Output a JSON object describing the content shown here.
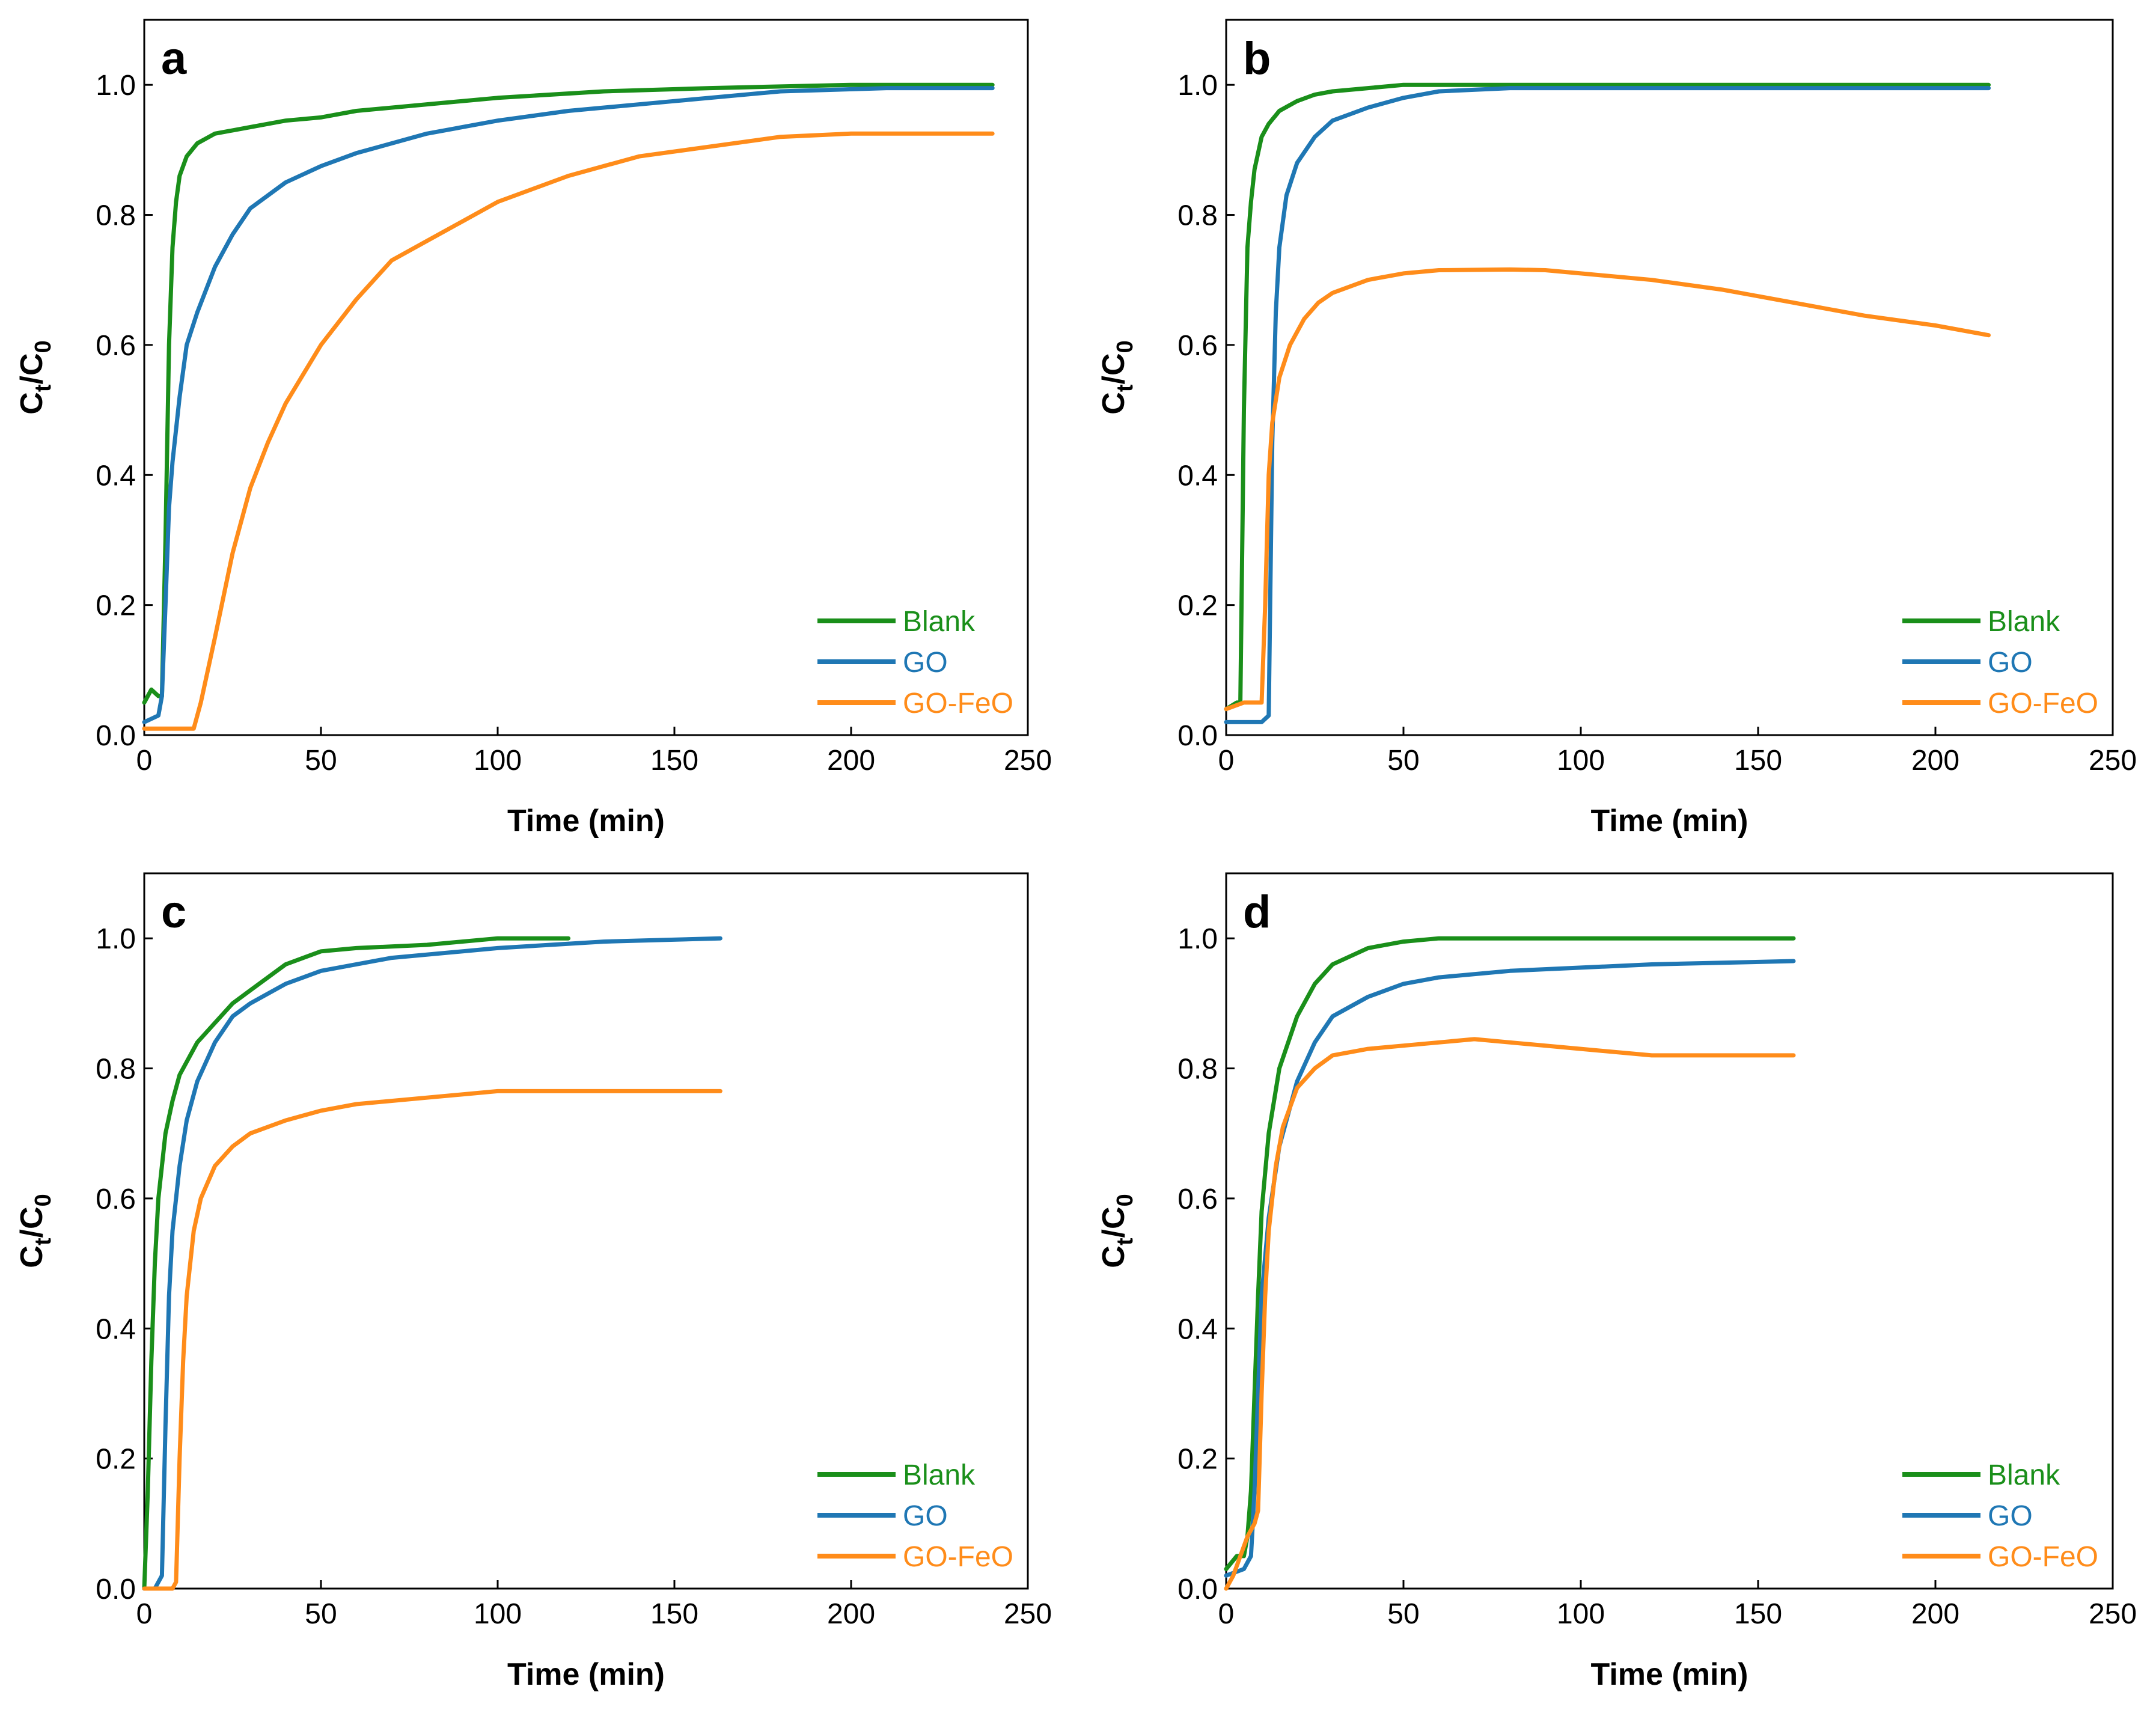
{
  "colors": {
    "blank": "#1a8f1a",
    "go": "#1f77b4",
    "gofeo": "#ff8c1a"
  },
  "chart_data": [
    {
      "type": "line",
      "panel_label": "a",
      "xlabel": "Time (min)",
      "ylabel_main": "C",
      "ylabel_sub_t": "t",
      "ylabel_slash": "/C",
      "ylabel_sub_0": "0",
      "xlim": [
        0,
        250
      ],
      "ylim": [
        0,
        1.1
      ],
      "xticks": [
        "0",
        "50",
        "100",
        "150",
        "200",
        "250"
      ],
      "yticks": [
        "0.0",
        "0.2",
        "0.4",
        "0.6",
        "0.8",
        "1.0"
      ],
      "legend": [
        "Blank",
        "GO",
        "GO-FeO"
      ],
      "series": [
        {
          "name": "Blank",
          "x": [
            0,
            2,
            4,
            5,
            6,
            7,
            8,
            9,
            10,
            12,
            15,
            20,
            25,
            30,
            40,
            50,
            60,
            80,
            100,
            130,
            160,
            200,
            240
          ],
          "y": [
            0.05,
            0.07,
            0.06,
            0.06,
            0.3,
            0.6,
            0.75,
            0.82,
            0.86,
            0.89,
            0.91,
            0.925,
            0.93,
            0.935,
            0.945,
            0.95,
            0.96,
            0.97,
            0.98,
            0.99,
            0.995,
            1.0,
            1.0
          ]
        },
        {
          "name": "GO",
          "x": [
            0,
            4,
            5,
            6,
            7,
            8,
            10,
            12,
            15,
            20,
            25,
            30,
            40,
            50,
            60,
            80,
            100,
            120,
            150,
            180,
            210,
            240
          ],
          "y": [
            0.02,
            0.03,
            0.06,
            0.2,
            0.35,
            0.42,
            0.52,
            0.6,
            0.65,
            0.72,
            0.77,
            0.81,
            0.85,
            0.875,
            0.895,
            0.925,
            0.945,
            0.96,
            0.975,
            0.99,
            0.995,
            0.995
          ]
        },
        {
          "name": "GO-FeO",
          "x": [
            0,
            5,
            10,
            14,
            16,
            20,
            25,
            30,
            35,
            40,
            50,
            60,
            70,
            80,
            90,
            100,
            120,
            140,
            160,
            180,
            200,
            240
          ],
          "y": [
            0.01,
            0.01,
            0.01,
            0.01,
            0.05,
            0.15,
            0.28,
            0.38,
            0.45,
            0.51,
            0.6,
            0.67,
            0.73,
            0.76,
            0.79,
            0.82,
            0.86,
            0.89,
            0.905,
            0.92,
            0.925,
            0.925
          ]
        }
      ]
    },
    {
      "type": "line",
      "panel_label": "b",
      "xlabel": "Time (min)",
      "ylabel_main": "C",
      "ylabel_sub_t": "t",
      "ylabel_slash": "/C",
      "ylabel_sub_0": "0",
      "xlim": [
        0,
        250
      ],
      "ylim": [
        0,
        1.1
      ],
      "xticks": [
        "0",
        "50",
        "100",
        "150",
        "200",
        "250"
      ],
      "yticks": [
        "0.0",
        "0.2",
        "0.4",
        "0.6",
        "0.8",
        "1.0"
      ],
      "legend": [
        "Blank",
        "GO",
        "GO-FeO"
      ],
      "series": [
        {
          "name": "Blank",
          "x": [
            0,
            3,
            4,
            5,
            6,
            7,
            8,
            10,
            12,
            15,
            20,
            25,
            30,
            40,
            50,
            100,
            150,
            215
          ],
          "y": [
            0.04,
            0.05,
            0.05,
            0.5,
            0.75,
            0.82,
            0.87,
            0.92,
            0.94,
            0.96,
            0.975,
            0.985,
            0.99,
            0.995,
            1.0,
            1.0,
            1.0,
            1.0
          ]
        },
        {
          "name": "GO",
          "x": [
            0,
            5,
            10,
            12,
            13,
            14,
            15,
            17,
            20,
            25,
            30,
            40,
            50,
            60,
            80,
            100,
            150,
            215
          ],
          "y": [
            0.02,
            0.02,
            0.02,
            0.03,
            0.45,
            0.65,
            0.75,
            0.83,
            0.88,
            0.92,
            0.945,
            0.965,
            0.98,
            0.99,
            0.995,
            0.995,
            0.995,
            0.995
          ]
        },
        {
          "name": "GO-FeO",
          "x": [
            0,
            5,
            10,
            11,
            12,
            13,
            15,
            18,
            22,
            26,
            30,
            40,
            50,
            60,
            80,
            90,
            100,
            120,
            140,
            160,
            180,
            200,
            215
          ],
          "y": [
            0.04,
            0.05,
            0.05,
            0.2,
            0.4,
            0.48,
            0.55,
            0.6,
            0.64,
            0.665,
            0.68,
            0.7,
            0.71,
            0.715,
            0.716,
            0.715,
            0.71,
            0.7,
            0.685,
            0.665,
            0.645,
            0.63,
            0.615
          ]
        }
      ]
    },
    {
      "type": "line",
      "panel_label": "c",
      "xlabel": "Time (min)",
      "ylabel_main": "C",
      "ylabel_sub_t": "t",
      "ylabel_slash": "/C",
      "ylabel_sub_0": "0",
      "xlim": [
        0,
        250
      ],
      "ylim": [
        0,
        1.1
      ],
      "xticks": [
        "0",
        "50",
        "100",
        "150",
        "200",
        "250"
      ],
      "yticks": [
        "0.0",
        "0.2",
        "0.4",
        "0.6",
        "0.8",
        "1.0"
      ],
      "legend": [
        "Blank",
        "GO",
        "GO-FeO"
      ],
      "series": [
        {
          "name": "Blank",
          "x": [
            0,
            1,
            2,
            3,
            4,
            6,
            8,
            10,
            15,
            20,
            25,
            30,
            40,
            50,
            60,
            80,
            100,
            120
          ],
          "y": [
            0.0,
            0.15,
            0.35,
            0.5,
            0.6,
            0.7,
            0.75,
            0.79,
            0.84,
            0.87,
            0.9,
            0.92,
            0.96,
            0.98,
            0.985,
            0.99,
            1.0,
            1.0
          ]
        },
        {
          "name": "GO",
          "x": [
            0,
            3,
            5,
            6,
            7,
            8,
            10,
            12,
            15,
            20,
            25,
            30,
            40,
            50,
            70,
            100,
            130,
            163
          ],
          "y": [
            0.0,
            0.0,
            0.02,
            0.25,
            0.45,
            0.55,
            0.65,
            0.72,
            0.78,
            0.84,
            0.88,
            0.9,
            0.93,
            0.95,
            0.97,
            0.985,
            0.995,
            1.0
          ]
        },
        {
          "name": "GO-FeO",
          "x": [
            0,
            8,
            9,
            10,
            11,
            12,
            14,
            16,
            20,
            25,
            30,
            40,
            50,
            60,
            80,
            100,
            130,
            163
          ],
          "y": [
            0.0,
            0.0,
            0.01,
            0.2,
            0.35,
            0.45,
            0.55,
            0.6,
            0.65,
            0.68,
            0.7,
            0.72,
            0.735,
            0.745,
            0.755,
            0.765,
            0.765,
            0.765
          ]
        }
      ]
    },
    {
      "type": "line",
      "panel_label": "d",
      "xlabel": "Time (min)",
      "ylabel_main": "C",
      "ylabel_sub_t": "t",
      "ylabel_slash": "/C",
      "ylabel_sub_0": "0",
      "xlim": [
        0,
        250
      ],
      "ylim": [
        0,
        1.1
      ],
      "xticks": [
        "0",
        "50",
        "100",
        "150",
        "200",
        "250"
      ],
      "yticks": [
        "0.0",
        "0.2",
        "0.4",
        "0.6",
        "0.8",
        "1.0"
      ],
      "legend": [
        "Blank",
        "GO",
        "GO-FeO"
      ],
      "series": [
        {
          "name": "Blank",
          "x": [
            0,
            3,
            5,
            6,
            7,
            8,
            9,
            10,
            12,
            15,
            20,
            25,
            30,
            40,
            50,
            60,
            80,
            100,
            160
          ],
          "y": [
            0.03,
            0.05,
            0.05,
            0.08,
            0.15,
            0.3,
            0.45,
            0.58,
            0.7,
            0.8,
            0.88,
            0.93,
            0.96,
            0.985,
            0.995,
            1.0,
            1.0,
            1.0,
            1.0
          ]
        },
        {
          "name": "GO",
          "x": [
            0,
            5,
            6,
            7,
            8,
            9,
            10,
            12,
            15,
            20,
            25,
            30,
            40,
            50,
            60,
            80,
            100,
            120,
            160
          ],
          "y": [
            0.02,
            0.03,
            0.04,
            0.05,
            0.15,
            0.3,
            0.45,
            0.57,
            0.68,
            0.78,
            0.84,
            0.88,
            0.91,
            0.93,
            0.94,
            0.95,
            0.955,
            0.96,
            0.965
          ]
        },
        {
          "name": "GO-FeO",
          "x": [
            0,
            2,
            4,
            6,
            8,
            9,
            10,
            11,
            12,
            14,
            16,
            20,
            25,
            30,
            40,
            50,
            60,
            70,
            80,
            100,
            120,
            140,
            160
          ],
          "y": [
            0.0,
            0.02,
            0.05,
            0.08,
            0.1,
            0.12,
            0.3,
            0.45,
            0.55,
            0.65,
            0.71,
            0.77,
            0.8,
            0.82,
            0.83,
            0.835,
            0.84,
            0.845,
            0.84,
            0.83,
            0.82,
            0.82,
            0.82
          ]
        }
      ]
    }
  ]
}
